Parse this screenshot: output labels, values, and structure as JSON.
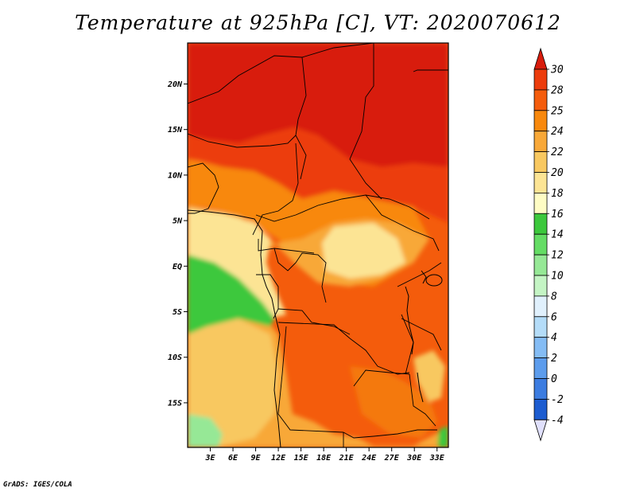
{
  "title": "Temperature at 925hPa [C], VT: 2020070612",
  "footer": "GrADS: IGES/COLA",
  "map": {
    "lat_ticks": [
      "20N",
      "15N",
      "10N",
      "5N",
      "EQ",
      "5S",
      "10S",
      "15S"
    ],
    "lon_ticks": [
      "3E",
      "6E",
      "9E",
      "12E",
      "15E",
      "18E",
      "21E",
      "24E",
      "27E",
      "30E",
      "33E"
    ],
    "lat_tick_values": [
      20,
      15,
      10,
      5,
      0,
      -5,
      -10,
      -15
    ],
    "lon_tick_values": [
      3,
      6,
      9,
      12,
      15,
      18,
      21,
      24,
      27,
      30,
      33
    ],
    "lat_range": [
      -19.9,
      24.5
    ],
    "lon_range": [
      0,
      34.5
    ]
  },
  "colorbar": {
    "labels": [
      "30",
      "28",
      "25",
      "24",
      "22",
      "20",
      "18",
      "16",
      "14",
      "12",
      "10",
      "8",
      "6",
      "4",
      "2",
      "0",
      "-2",
      "-4"
    ],
    "colors": [
      "#d81c0c",
      "#ec3c0c",
      "#f45c0c",
      "#f8880c",
      "#f8a838",
      "#f8c860",
      "#fce494",
      "#fefcc4",
      "#3cc83c",
      "#64dc64",
      "#96e896",
      "#c4f4c4",
      "#e0f0fc",
      "#b4dcf8",
      "#84bcf4",
      "#5c9cec",
      "#3c7ce0",
      "#1c5cd0",
      "#0c38b0",
      "#081880"
    ]
  }
}
